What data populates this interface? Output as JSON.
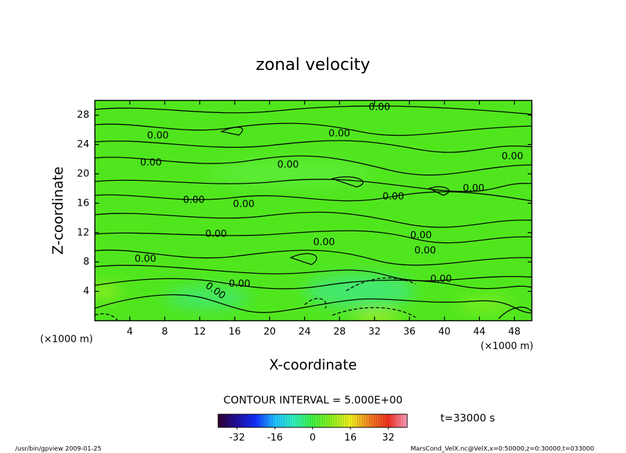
{
  "chart_data": {
    "type": "contour",
    "title": "zonal velocity",
    "xlabel": "X-coordinate",
    "ylabel": "Z-coordinate",
    "xunit": "(×1000 m)",
    "yunit": "(×1000 m)",
    "xlim": [
      0,
      50
    ],
    "xticks": [
      4,
      8,
      12,
      16,
      20,
      24,
      28,
      32,
      36,
      40,
      44,
      48
    ],
    "ylim": [
      0,
      30
    ],
    "yticks": [
      4,
      8,
      12,
      16,
      20,
      24,
      28
    ],
    "field_color": "#50e61e",
    "contour_labels": [
      "0.00",
      "0.00",
      "0.00",
      "0.00",
      "0.00",
      "0.00",
      "0.00",
      "0.00",
      "0.00",
      "0.00",
      "0.00",
      "0.00",
      "0.00",
      "0.00",
      "0.00",
      "0.00",
      "0.00",
      "0.00"
    ],
    "contour_interval": "CONTOUR INTERVAL = 5.000E+00",
    "time_label": "t=33000 s",
    "colorbar": {
      "lim": [
        -40,
        40
      ],
      "ticks": [
        -32,
        -16,
        0,
        16,
        32
      ],
      "colors": [
        "#300030",
        "#2010a0",
        "#1030ff",
        "#20c0ff",
        "#30f0c0",
        "#40f040",
        "#90f020",
        "#f0f020",
        "#f08020",
        "#f03020",
        "#ffa0c0"
      ]
    },
    "footer_left": "/usr/bin/gpview  2009-01-25",
    "footer_right": "MarsCond_VelX.nc@VelX,x=0:50000,z=0:30000,t=033000"
  }
}
